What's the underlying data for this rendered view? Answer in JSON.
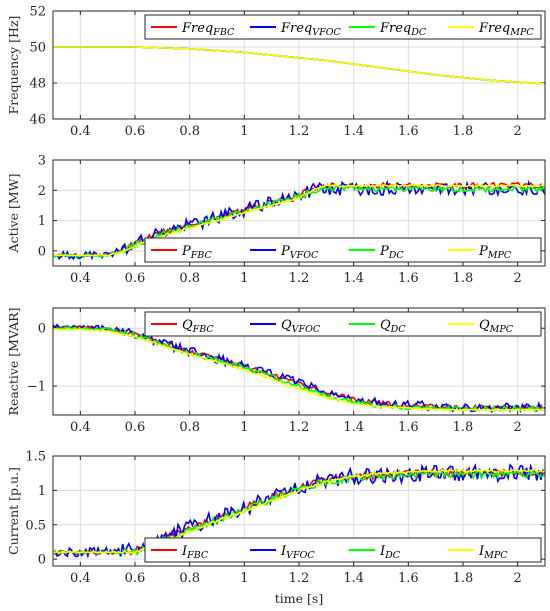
{
  "chart_data": [
    {
      "type": "line",
      "ylabel": "Frequency [Hz]",
      "xlabel": "",
      "xlim": [
        0.3,
        2.1
      ],
      "ylim": [
        46,
        52
      ],
      "xticks": [
        "0.4",
        "0.6",
        "0.8",
        "1",
        "1.2",
        "1.4",
        "1.6",
        "1.8",
        "2"
      ],
      "yticks": [
        "46",
        "48",
        "50",
        "52"
      ],
      "grid": true,
      "legend_position": "top-right",
      "legend_layout": "horizontal",
      "x": [
        0.3,
        0.6,
        0.8,
        1.0,
        1.1,
        1.2,
        1.3,
        1.4,
        1.5,
        1.6,
        1.7,
        1.8,
        1.9,
        2.0,
        2.1
      ],
      "series": [
        {
          "name": "Freq_FBC",
          "label": "Freq",
          "sub": "FBC",
          "color": "#ff0000",
          "values": [
            50,
            50,
            49.9,
            49.7,
            49.55,
            49.4,
            49.25,
            49.05,
            48.85,
            48.65,
            48.45,
            48.3,
            48.15,
            48.05,
            47.95
          ]
        },
        {
          "name": "Freq_VFOC",
          "label": "Freq",
          "sub": "VFOC",
          "color": "#0000ff",
          "values": [
            50,
            50,
            49.9,
            49.7,
            49.55,
            49.4,
            49.25,
            49.05,
            48.85,
            48.65,
            48.45,
            48.3,
            48.15,
            48.05,
            47.95
          ]
        },
        {
          "name": "Freq_DC",
          "label": "Freq",
          "sub": "DC",
          "color": "#00ff00",
          "values": [
            50,
            50,
            49.9,
            49.7,
            49.55,
            49.4,
            49.25,
            49.05,
            48.85,
            48.65,
            48.45,
            48.3,
            48.15,
            48.05,
            47.95
          ]
        },
        {
          "name": "Freq_MPC",
          "label": "Freq",
          "sub": "MPC",
          "color": "#ffff00",
          "values": [
            50,
            50,
            49.9,
            49.7,
            49.55,
            49.4,
            49.25,
            49.05,
            48.85,
            48.65,
            48.45,
            48.3,
            48.15,
            48.05,
            47.95
          ]
        }
      ]
    },
    {
      "type": "line",
      "ylabel": "Active [MW]",
      "xlabel": "",
      "xlim": [
        0.3,
        2.1
      ],
      "ylim": [
        -0.5,
        3
      ],
      "xticks": [
        "0.4",
        "0.6",
        "0.8",
        "1",
        "1.2",
        "1.4",
        "1.6",
        "1.8",
        "2"
      ],
      "yticks": [
        "0",
        "1",
        "2",
        "3"
      ],
      "grid": true,
      "legend_position": "bottom-right",
      "legend_layout": "horizontal",
      "x": [
        0.3,
        0.4,
        0.5,
        0.55,
        0.6,
        0.7,
        0.8,
        0.9,
        1.0,
        1.1,
        1.2,
        1.25,
        1.3,
        1.4,
        1.5,
        1.6,
        1.7,
        1.8,
        1.9,
        2.0,
        2.1
      ],
      "series": [
        {
          "name": "P_FBC",
          "label": "P",
          "sub": "FBC",
          "color": "#ff0000",
          "values": [
            -0.15,
            -0.15,
            -0.12,
            0.0,
            0.25,
            0.6,
            0.85,
            1.1,
            1.35,
            1.6,
            1.85,
            2.05,
            2.15,
            2.15,
            2.15,
            2.15,
            2.15,
            2.15,
            2.15,
            2.15,
            2.15
          ],
          "noise": 0.1
        },
        {
          "name": "P_VFOC",
          "label": "P",
          "sub": "VFOC",
          "color": "#0000ff",
          "values": [
            -0.15,
            -0.15,
            -0.12,
            0.0,
            0.25,
            0.6,
            0.85,
            1.1,
            1.35,
            1.6,
            1.85,
            2.0,
            2.05,
            2.05,
            2.05,
            2.05,
            2.05,
            2.05,
            2.05,
            2.05,
            2.05
          ],
          "noise": 0.22
        },
        {
          "name": "P_DC",
          "label": "P",
          "sub": "DC",
          "color": "#00ff00",
          "values": [
            -0.15,
            -0.15,
            -0.13,
            -0.02,
            0.2,
            0.55,
            0.8,
            1.05,
            1.3,
            1.55,
            1.8,
            1.98,
            2.05,
            2.05,
            2.05,
            2.05,
            2.05,
            2.05,
            2.05,
            2.05,
            2.05
          ],
          "noise": 0.1
        },
        {
          "name": "P_MPC",
          "label": "P",
          "sub": "MPC",
          "color": "#ffff00",
          "values": [
            -0.15,
            -0.15,
            -0.14,
            -0.05,
            0.15,
            0.5,
            0.75,
            1.0,
            1.25,
            1.5,
            1.75,
            2.0,
            2.15,
            2.15,
            2.15,
            2.15,
            2.15,
            2.15,
            2.15,
            2.15,
            2.15
          ],
          "noise": 0.03
        }
      ]
    },
    {
      "type": "line",
      "ylabel": "Reactive [MVAR]",
      "xlabel": "",
      "xlim": [
        0.3,
        2.1
      ],
      "ylim": [
        -1.5,
        0.35
      ],
      "xticks": [
        "0.4",
        "0.6",
        "0.8",
        "1",
        "1.2",
        "1.4",
        "1.6",
        "1.8",
        "2"
      ],
      "yticks": [
        "-1",
        "0"
      ],
      "grid": true,
      "legend_position": "top-right",
      "legend_layout": "horizontal",
      "x": [
        0.3,
        0.4,
        0.5,
        0.6,
        0.7,
        0.8,
        0.9,
        1.0,
        1.1,
        1.2,
        1.3,
        1.4,
        1.5,
        1.6,
        1.7,
        1.8,
        1.9,
        2.0,
        2.1
      ],
      "series": [
        {
          "name": "Q_FBC",
          "label": "Q",
          "sub": "FBC",
          "color": "#ff0000",
          "values": [
            0.02,
            0.02,
            0.0,
            -0.1,
            -0.25,
            -0.4,
            -0.52,
            -0.65,
            -0.8,
            -0.95,
            -1.12,
            -1.22,
            -1.3,
            -1.33,
            -1.35,
            -1.37,
            -1.37,
            -1.37,
            -1.37
          ],
          "noise": 0.04
        },
        {
          "name": "Q_VFOC",
          "label": "Q",
          "sub": "VFOC",
          "color": "#0000ff",
          "values": [
            0.02,
            0.02,
            0.0,
            -0.1,
            -0.25,
            -0.4,
            -0.52,
            -0.65,
            -0.8,
            -0.95,
            -1.12,
            -1.22,
            -1.3,
            -1.33,
            -1.35,
            -1.37,
            -1.37,
            -1.37,
            -1.37
          ],
          "noise": 0.08
        },
        {
          "name": "Q_DC",
          "label": "Q",
          "sub": "DC",
          "color": "#00ff00",
          "values": [
            0.0,
            0.0,
            -0.02,
            -0.12,
            -0.28,
            -0.43,
            -0.55,
            -0.68,
            -0.83,
            -1.0,
            -1.17,
            -1.27,
            -1.34,
            -1.37,
            -1.38,
            -1.39,
            -1.39,
            -1.39,
            -1.39
          ],
          "noise": 0.04
        },
        {
          "name": "Q_MPC",
          "label": "Q",
          "sub": "MPC",
          "color": "#ffff00",
          "values": [
            -0.02,
            -0.02,
            -0.05,
            -0.15,
            -0.3,
            -0.45,
            -0.58,
            -0.72,
            -0.88,
            -1.05,
            -1.2,
            -1.3,
            -1.36,
            -1.38,
            -1.4,
            -1.41,
            -1.41,
            -1.41,
            -1.41
          ],
          "noise": 0.01
        }
      ]
    },
    {
      "type": "line",
      "ylabel": "Current [p.u.]",
      "xlabel": "time [s]",
      "xlim": [
        0.3,
        2.1
      ],
      "ylim": [
        -0.1,
        1.5
      ],
      "xticks": [
        "0.4",
        "0.6",
        "0.8",
        "1",
        "1.2",
        "1.4",
        "1.6",
        "1.8",
        "2"
      ],
      "yticks": [
        "0",
        "0.5",
        "1",
        "1.5"
      ],
      "grid": true,
      "legend_position": "bottom-right",
      "legend_layout": "horizontal",
      "x": [
        0.3,
        0.4,
        0.5,
        0.55,
        0.6,
        0.7,
        0.8,
        0.9,
        1.0,
        1.1,
        1.2,
        1.3,
        1.4,
        1.5,
        1.6,
        1.7,
        1.8,
        1.9,
        2.0,
        2.1
      ],
      "series": [
        {
          "name": "I_FBC",
          "label": "I",
          "sub": "FBC",
          "color": "#ff0000",
          "values": [
            0.1,
            0.1,
            0.1,
            0.1,
            0.12,
            0.3,
            0.45,
            0.6,
            0.75,
            0.9,
            1.05,
            1.15,
            1.2,
            1.22,
            1.24,
            1.25,
            1.25,
            1.25,
            1.25,
            1.25
          ],
          "noise": 0.05
        },
        {
          "name": "I_VFOC",
          "label": "I",
          "sub": "VFOC",
          "color": "#0000ff",
          "values": [
            0.1,
            0.1,
            0.1,
            0.1,
            0.12,
            0.3,
            0.45,
            0.6,
            0.75,
            0.9,
            1.05,
            1.15,
            1.2,
            1.22,
            1.24,
            1.25,
            1.25,
            1.25,
            1.25,
            1.25
          ],
          "noise": 0.12
        },
        {
          "name": "I_DC",
          "label": "I",
          "sub": "DC",
          "color": "#00ff00",
          "values": [
            0.1,
            0.1,
            0.1,
            0.1,
            0.1,
            0.26,
            0.42,
            0.57,
            0.72,
            0.87,
            1.02,
            1.13,
            1.18,
            1.2,
            1.22,
            1.23,
            1.23,
            1.23,
            1.23,
            1.23
          ],
          "noise": 0.05
        },
        {
          "name": "I_MPC",
          "label": "I",
          "sub": "MPC",
          "color": "#ffff00",
          "values": [
            0.1,
            0.1,
            0.1,
            0.1,
            0.1,
            0.25,
            0.4,
            0.55,
            0.7,
            0.85,
            1.0,
            1.12,
            1.2,
            1.25,
            1.27,
            1.28,
            1.28,
            1.28,
            1.28,
            1.28
          ],
          "noise": 0.02
        }
      ]
    }
  ]
}
